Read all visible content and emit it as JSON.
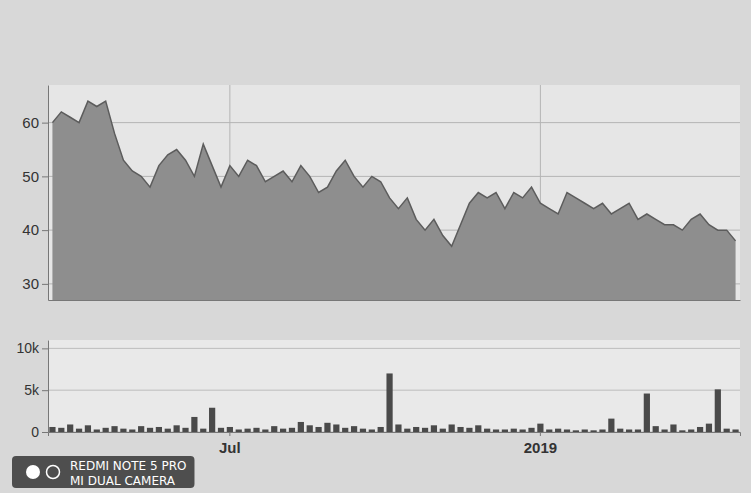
{
  "chart_data": [
    {
      "type": "area",
      "categories": [
        null,
        null,
        null,
        null,
        null,
        null,
        null,
        null,
        null,
        null,
        null,
        null,
        null,
        null,
        null,
        null,
        null,
        null,
        null,
        null,
        null,
        null,
        null,
        null,
        null,
        null,
        null,
        null,
        null,
        null,
        null,
        null,
        null,
        null,
        null,
        null,
        null,
        null,
        null,
        null,
        null,
        null,
        null,
        null,
        null,
        null,
        null,
        null,
        null,
        null,
        null,
        null,
        null,
        null,
        null,
        null,
        null,
        null,
        null,
        null,
        null,
        null,
        null,
        null,
        null,
        null,
        null,
        null,
        null,
        null,
        null,
        null,
        null,
        null,
        null,
        null,
        null,
        null
      ],
      "values": [
        60,
        62,
        61,
        60,
        64,
        63,
        64,
        58,
        53,
        51,
        50,
        48,
        52,
        54,
        55,
        53,
        50,
        56,
        52,
        48,
        52,
        50,
        53,
        52,
        49,
        50,
        51,
        49,
        52,
        50,
        47,
        48,
        51,
        53,
        50,
        48,
        50,
        49,
        46,
        44,
        46,
        42,
        40,
        42,
        39,
        37,
        41,
        45,
        47,
        46,
        47,
        44,
        47,
        46,
        48,
        45,
        44,
        43,
        47,
        46,
        45,
        44,
        45,
        43,
        44,
        45,
        42,
        43,
        42,
        41,
        41,
        40,
        42,
        43,
        41,
        40,
        40,
        38
      ],
      "ylim": [
        27,
        67
      ],
      "yticks": [
        30,
        40,
        50,
        60
      ],
      "grid": true,
      "tick_labels": "y",
      "color": "#8e8e8e"
    },
    {
      "type": "bar",
      "categories": [
        null,
        null,
        null,
        null,
        null,
        null,
        null,
        null,
        null,
        null,
        null,
        null,
        null,
        null,
        null,
        null,
        null,
        null,
        null,
        null,
        "Jul",
        null,
        null,
        null,
        null,
        null,
        null,
        null,
        null,
        null,
        null,
        null,
        null,
        null,
        null,
        null,
        null,
        null,
        null,
        null,
        null,
        null,
        null,
        null,
        null,
        null,
        null,
        null,
        null,
        null,
        null,
        null,
        null,
        null,
        null,
        "2019",
        null,
        null,
        null,
        null,
        null,
        null,
        null,
        null,
        null,
        null,
        null,
        null,
        null,
        null,
        null,
        null,
        null,
        null,
        null,
        null,
        null,
        null
      ],
      "values": [
        600,
        500,
        900,
        400,
        800,
        300,
        500,
        700,
        400,
        300,
        700,
        500,
        600,
        400,
        800,
        500,
        1800,
        400,
        2900,
        500,
        600,
        300,
        400,
        500,
        300,
        700,
        400,
        500,
        1200,
        800,
        600,
        1100,
        900,
        500,
        700,
        400,
        300,
        600,
        7000,
        900,
        400,
        600,
        500,
        800,
        400,
        900,
        600,
        500,
        800,
        400,
        300,
        300,
        400,
        300,
        500,
        1000,
        300,
        400,
        300,
        200,
        300,
        200,
        300,
        1600,
        400,
        300,
        300,
        4600,
        700,
        300,
        900,
        200,
        300,
        600,
        1000,
        5100,
        400,
        300
      ],
      "ylim": [
        0,
        11000
      ],
      "yticks": [
        0,
        {
          "value": 5000,
          "label": "5k"
        },
        {
          "value": 10000,
          "label": "10k"
        }
      ],
      "grid": true,
      "color": "#4a4a4a",
      "annotations": [
        "REDMI NOTE 5 PRO",
        "MI DUAL CAMERA"
      ]
    }
  ]
}
